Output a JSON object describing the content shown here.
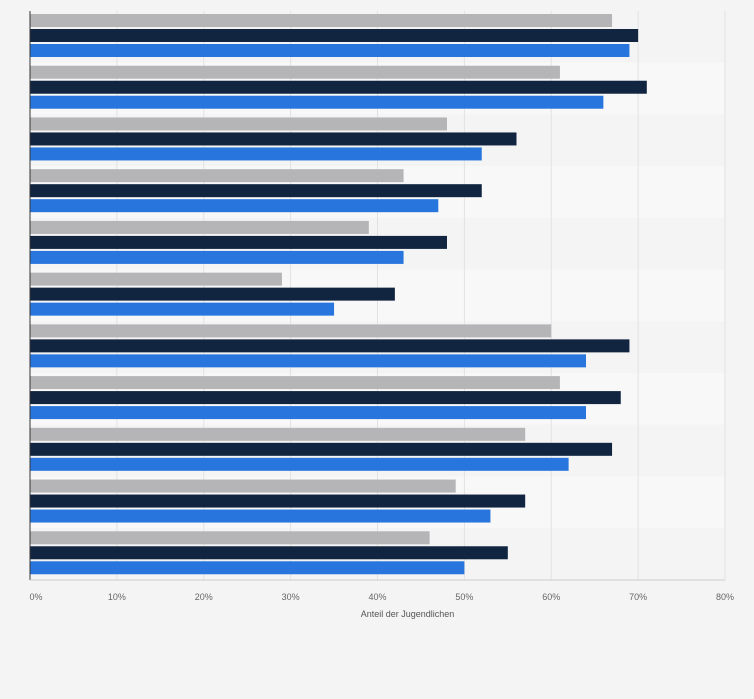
{
  "chart_data": {
    "type": "bar",
    "orientation": "horizontal",
    "title": "",
    "xlabel": "Anteil der Jugendlichen",
    "ylabel": "",
    "xlim": [
      0,
      80
    ],
    "x_ticks": [
      0,
      10,
      20,
      30,
      40,
      50,
      60,
      70,
      80
    ],
    "x_tick_format": "%",
    "grid": true,
    "legend": "none",
    "categories": [
      "",
      "",
      "",
      "",
      "",
      "",
      "",
      "",
      "",
      "",
      ""
    ],
    "series": [
      {
        "color": "#b5b5b8",
        "values": [
          67,
          61,
          48,
          43,
          39,
          29,
          60,
          61,
          57,
          49,
          46
        ]
      },
      {
        "color": "#112540",
        "values": [
          70,
          71,
          56,
          52,
          48,
          42,
          69,
          68,
          67,
          57,
          55
        ]
      },
      {
        "color": "#2876dd",
        "values": [
          69,
          66,
          52,
          47,
          43,
          35,
          64,
          64,
          62,
          53,
          50
        ]
      }
    ],
    "colors": {
      "background": "#f4f4f4",
      "band_alt": "#f8f8f8",
      "grid": "#e2e2e2",
      "axis": "#333333"
    }
  }
}
